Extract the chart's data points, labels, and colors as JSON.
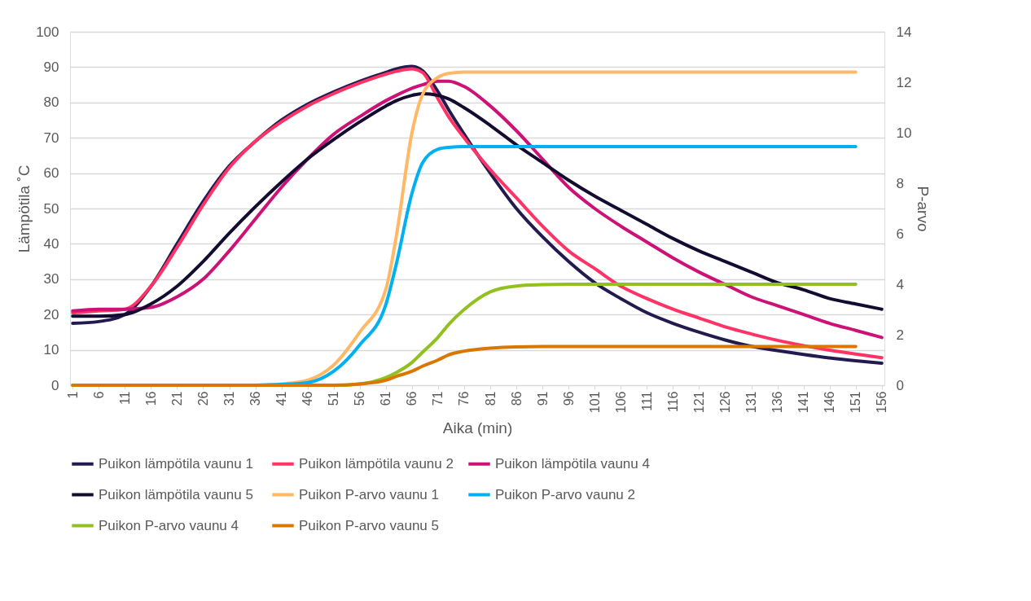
{
  "chart_data": {
    "type": "line",
    "xlabel": "Aika (min)",
    "ylabel": "Lämpötila ˚C",
    "y2label": "P-arvo",
    "xlim": [
      0.5,
      156.5
    ],
    "xticks": [
      1,
      6,
      11,
      16,
      21,
      26,
      31,
      36,
      41,
      46,
      51,
      56,
      61,
      66,
      71,
      76,
      81,
      86,
      91,
      96,
      101,
      106,
      111,
      116,
      121,
      126,
      131,
      136,
      141,
      146,
      151,
      156
    ],
    "ylim": [
      0,
      100
    ],
    "yticks": [
      0,
      10,
      20,
      30,
      40,
      50,
      60,
      70,
      80,
      90,
      100
    ],
    "y2lim": [
      0,
      14
    ],
    "y2ticks": [
      0,
      2,
      4,
      6,
      8,
      10,
      12,
      14
    ],
    "grid": "y",
    "legend": "bottom",
    "x": [
      1,
      6,
      11,
      16,
      21,
      26,
      31,
      36,
      41,
      46,
      51,
      56,
      61,
      63,
      66,
      68,
      71,
      73,
      76,
      81,
      86,
      91,
      96,
      101,
      106,
      111,
      116,
      121,
      126,
      131,
      136,
      141,
      146,
      151,
      156
    ],
    "series": [
      {
        "name": "Puikon lämpötila  vaunu 1",
        "color": "#231a4f",
        "values": [
          17.5,
          18,
          20,
          28,
          40,
          52,
          62,
          69,
          75,
          79.5,
          83,
          86,
          88.5,
          89.5,
          90.2,
          89,
          83,
          78,
          71,
          60,
          50,
          42,
          35,
          29,
          24.5,
          20.5,
          17.5,
          15,
          12.8,
          11,
          9.8,
          8.7,
          7.7,
          6.9,
          6.2
        ]
      },
      {
        "name": "Puikon lämpötila vaunu 2",
        "color": "#ff3366",
        "values": [
          20.5,
          21,
          21.5,
          28,
          39,
          51,
          61.5,
          69,
          74.5,
          79,
          82.5,
          85.5,
          88,
          88.8,
          89.5,
          88.5,
          81,
          76,
          70,
          61,
          53,
          45,
          38,
          33,
          28,
          24.5,
          21.5,
          19,
          16.5,
          14.5,
          12.7,
          11.2,
          9.9,
          8.8,
          7.8
        ]
      },
      {
        "name": "Puikon lämpötila vaunu 4",
        "color": "#cc1177",
        "values": [
          21,
          21.5,
          21.5,
          22,
          25,
          30,
          38,
          47,
          56,
          64,
          71,
          76,
          80.5,
          82,
          84,
          85,
          86,
          86,
          84.5,
          79,
          72,
          64,
          56,
          50,
          45,
          40.5,
          36,
          32,
          28.5,
          25,
          22.5,
          20,
          17.5,
          15.5,
          13.5
        ]
      },
      {
        "name": "Puikon lämpötila vaunu 5",
        "color": "#140c30",
        "values": [
          19.5,
          19.5,
          20,
          23,
          28,
          35,
          43,
          50.5,
          57.5,
          64,
          69.5,
          74.5,
          79,
          80.5,
          82,
          82.5,
          82,
          81,
          78.5,
          73.5,
          68,
          63,
          58,
          53.5,
          49.5,
          45.5,
          41.5,
          38,
          35,
          32,
          29,
          27,
          24.5,
          23,
          21.5
        ]
      },
      {
        "name": "Puikon P-arvo vaunu 1",
        "color": "#ffb966",
        "axis": "y2",
        "values": [
          null,
          null,
          null,
          null,
          null,
          null,
          null,
          0,
          0.05,
          0.2,
          0.8,
          2.1,
          3.8,
          5.9,
          10,
          11.5,
          12.2,
          12.35,
          12.4,
          12.4,
          12.4,
          12.4,
          12.4,
          12.4,
          12.4,
          12.4,
          12.4,
          12.4,
          12.4,
          12.4,
          12.4,
          12.4,
          12.4,
          12.4,
          null
        ]
      },
      {
        "name": "Puikon P-arvo vaunu 2",
        "color": "#00b0f0",
        "axis": "y2",
        "values": [
          null,
          null,
          null,
          null,
          null,
          null,
          null,
          0,
          0.03,
          0.1,
          0.55,
          1.6,
          3.2,
          4.8,
          7.6,
          8.8,
          9.35,
          9.42,
          9.45,
          9.45,
          9.45,
          9.45,
          9.45,
          9.45,
          9.45,
          9.45,
          9.45,
          9.45,
          9.45,
          9.45,
          9.45,
          9.45,
          9.45,
          9.45,
          null
        ]
      },
      {
        "name": "Puikon P-arvo vaunu 4",
        "color": "#92c01f",
        "axis": "y2",
        "values": [
          0,
          0,
          0,
          0,
          0,
          0,
          0,
          0,
          0,
          0,
          0,
          0.05,
          0.3,
          0.5,
          0.9,
          1.3,
          1.9,
          2.4,
          3.0,
          3.7,
          3.93,
          3.98,
          4.0,
          4.0,
          4.0,
          4.0,
          4.0,
          4.0,
          4.0,
          4.0,
          4.0,
          4.0,
          4.0,
          4.0,
          null
        ]
      },
      {
        "name": "Puikon P-arvo vaunu 5",
        "color": "#d97700",
        "axis": "y2",
        "values": [
          0,
          0,
          0,
          0,
          0,
          0,
          0,
          0,
          0,
          0,
          0,
          0.05,
          0.2,
          0.35,
          0.55,
          0.75,
          1.0,
          1.2,
          1.35,
          1.47,
          1.52,
          1.53,
          1.53,
          1.53,
          1.53,
          1.53,
          1.53,
          1.53,
          1.53,
          1.53,
          1.53,
          1.53,
          1.53,
          1.53,
          null
        ]
      }
    ]
  }
}
